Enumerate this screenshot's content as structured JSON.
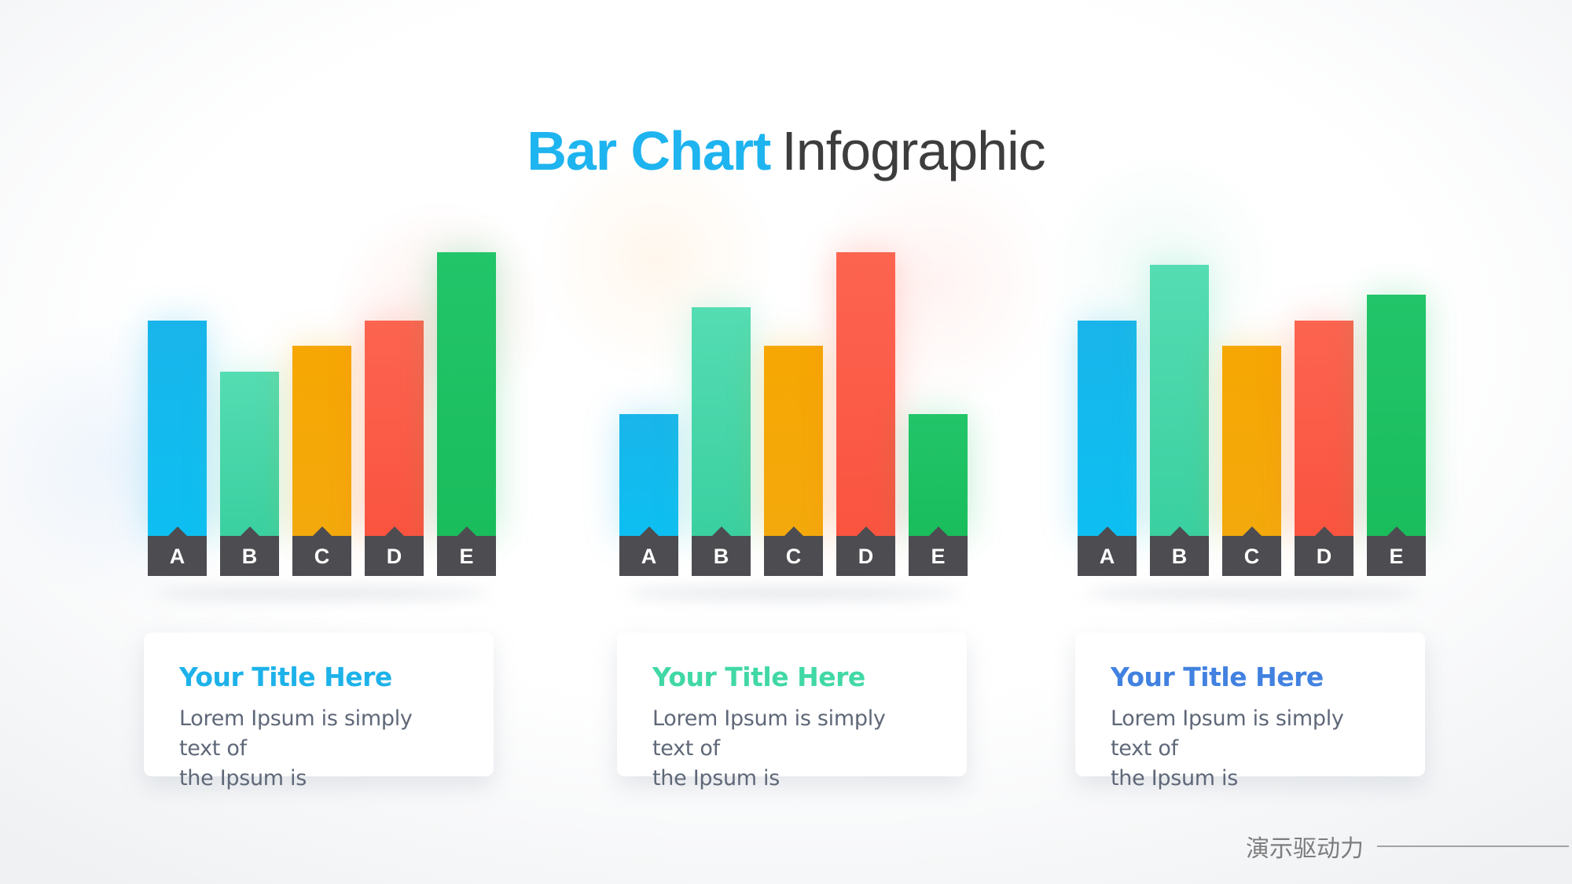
{
  "slide": {
    "title": {
      "highlight": "Bar Chart",
      "rest": "Infographic"
    },
    "footer": {
      "brand": "演示驱动力"
    }
  },
  "palette": {
    "title_highlight": "#1eb4ef",
    "title_rest": "#3d3d3d",
    "strip": "#4c4c51",
    "strip_letter": "#ffffff",
    "card_body_text": "#5f6878",
    "footer_text": "#7d7d7d",
    "footer_rule": "#a3a3a3",
    "bar_colors": [
      {
        "name": "blue",
        "top": "#19b5ea",
        "bottom": "#0dbff2"
      },
      {
        "name": "teal",
        "top": "#55dcb2",
        "bottom": "#3ad0a0"
      },
      {
        "name": "orange",
        "top": "#f6a703",
        "bottom": "#f3a90c"
      },
      {
        "name": "red",
        "top": "#fc6450",
        "bottom": "#fa5440"
      },
      {
        "name": "green",
        "top": "#22c569",
        "bottom": "#1abd5c"
      }
    ]
  },
  "chart_data": [
    {
      "type": "bar",
      "title": "Your Title Here",
      "categories": [
        "A",
        "B",
        "C",
        "D",
        "E"
      ],
      "values": [
        79,
        63,
        71,
        79,
        100
      ],
      "ylim": [
        0,
        100
      ],
      "xlabel": "",
      "ylabel": "",
      "grid": false,
      "legend": false,
      "note": "decorative infographic bars, heights in % of tallest bar"
    },
    {
      "type": "bar",
      "title": "Your Title Here",
      "categories": [
        "A",
        "B",
        "C",
        "D",
        "E"
      ],
      "values": [
        50,
        83,
        71,
        100,
        50
      ],
      "ylim": [
        0,
        100
      ],
      "xlabel": "",
      "ylabel": "",
      "grid": false,
      "legend": false,
      "note": "decorative infographic bars, heights in % of tallest bar"
    },
    {
      "type": "bar",
      "title": "Your Title Here",
      "categories": [
        "A",
        "B",
        "C",
        "D",
        "E"
      ],
      "values": [
        79,
        96,
        71,
        79,
        87
      ],
      "ylim": [
        0,
        100
      ],
      "xlabel": "",
      "ylabel": "",
      "grid": false,
      "legend": false,
      "note": "decorative infographic bars, heights in % of tallest bar"
    }
  ],
  "cards": [
    {
      "title": "Your Title Here",
      "accent": "#1db2e9",
      "body": "Lorem Ipsum is simply text of\nthe Ipsum is"
    },
    {
      "title": "Your Title Here",
      "accent": "#41d8a6",
      "body": "Lorem Ipsum is simply text of\nthe Ipsum is"
    },
    {
      "title": "Your Title Here",
      "accent": "#4181e0",
      "body": "Lorem Ipsum is simply text of\nthe Ipsum is"
    }
  ]
}
